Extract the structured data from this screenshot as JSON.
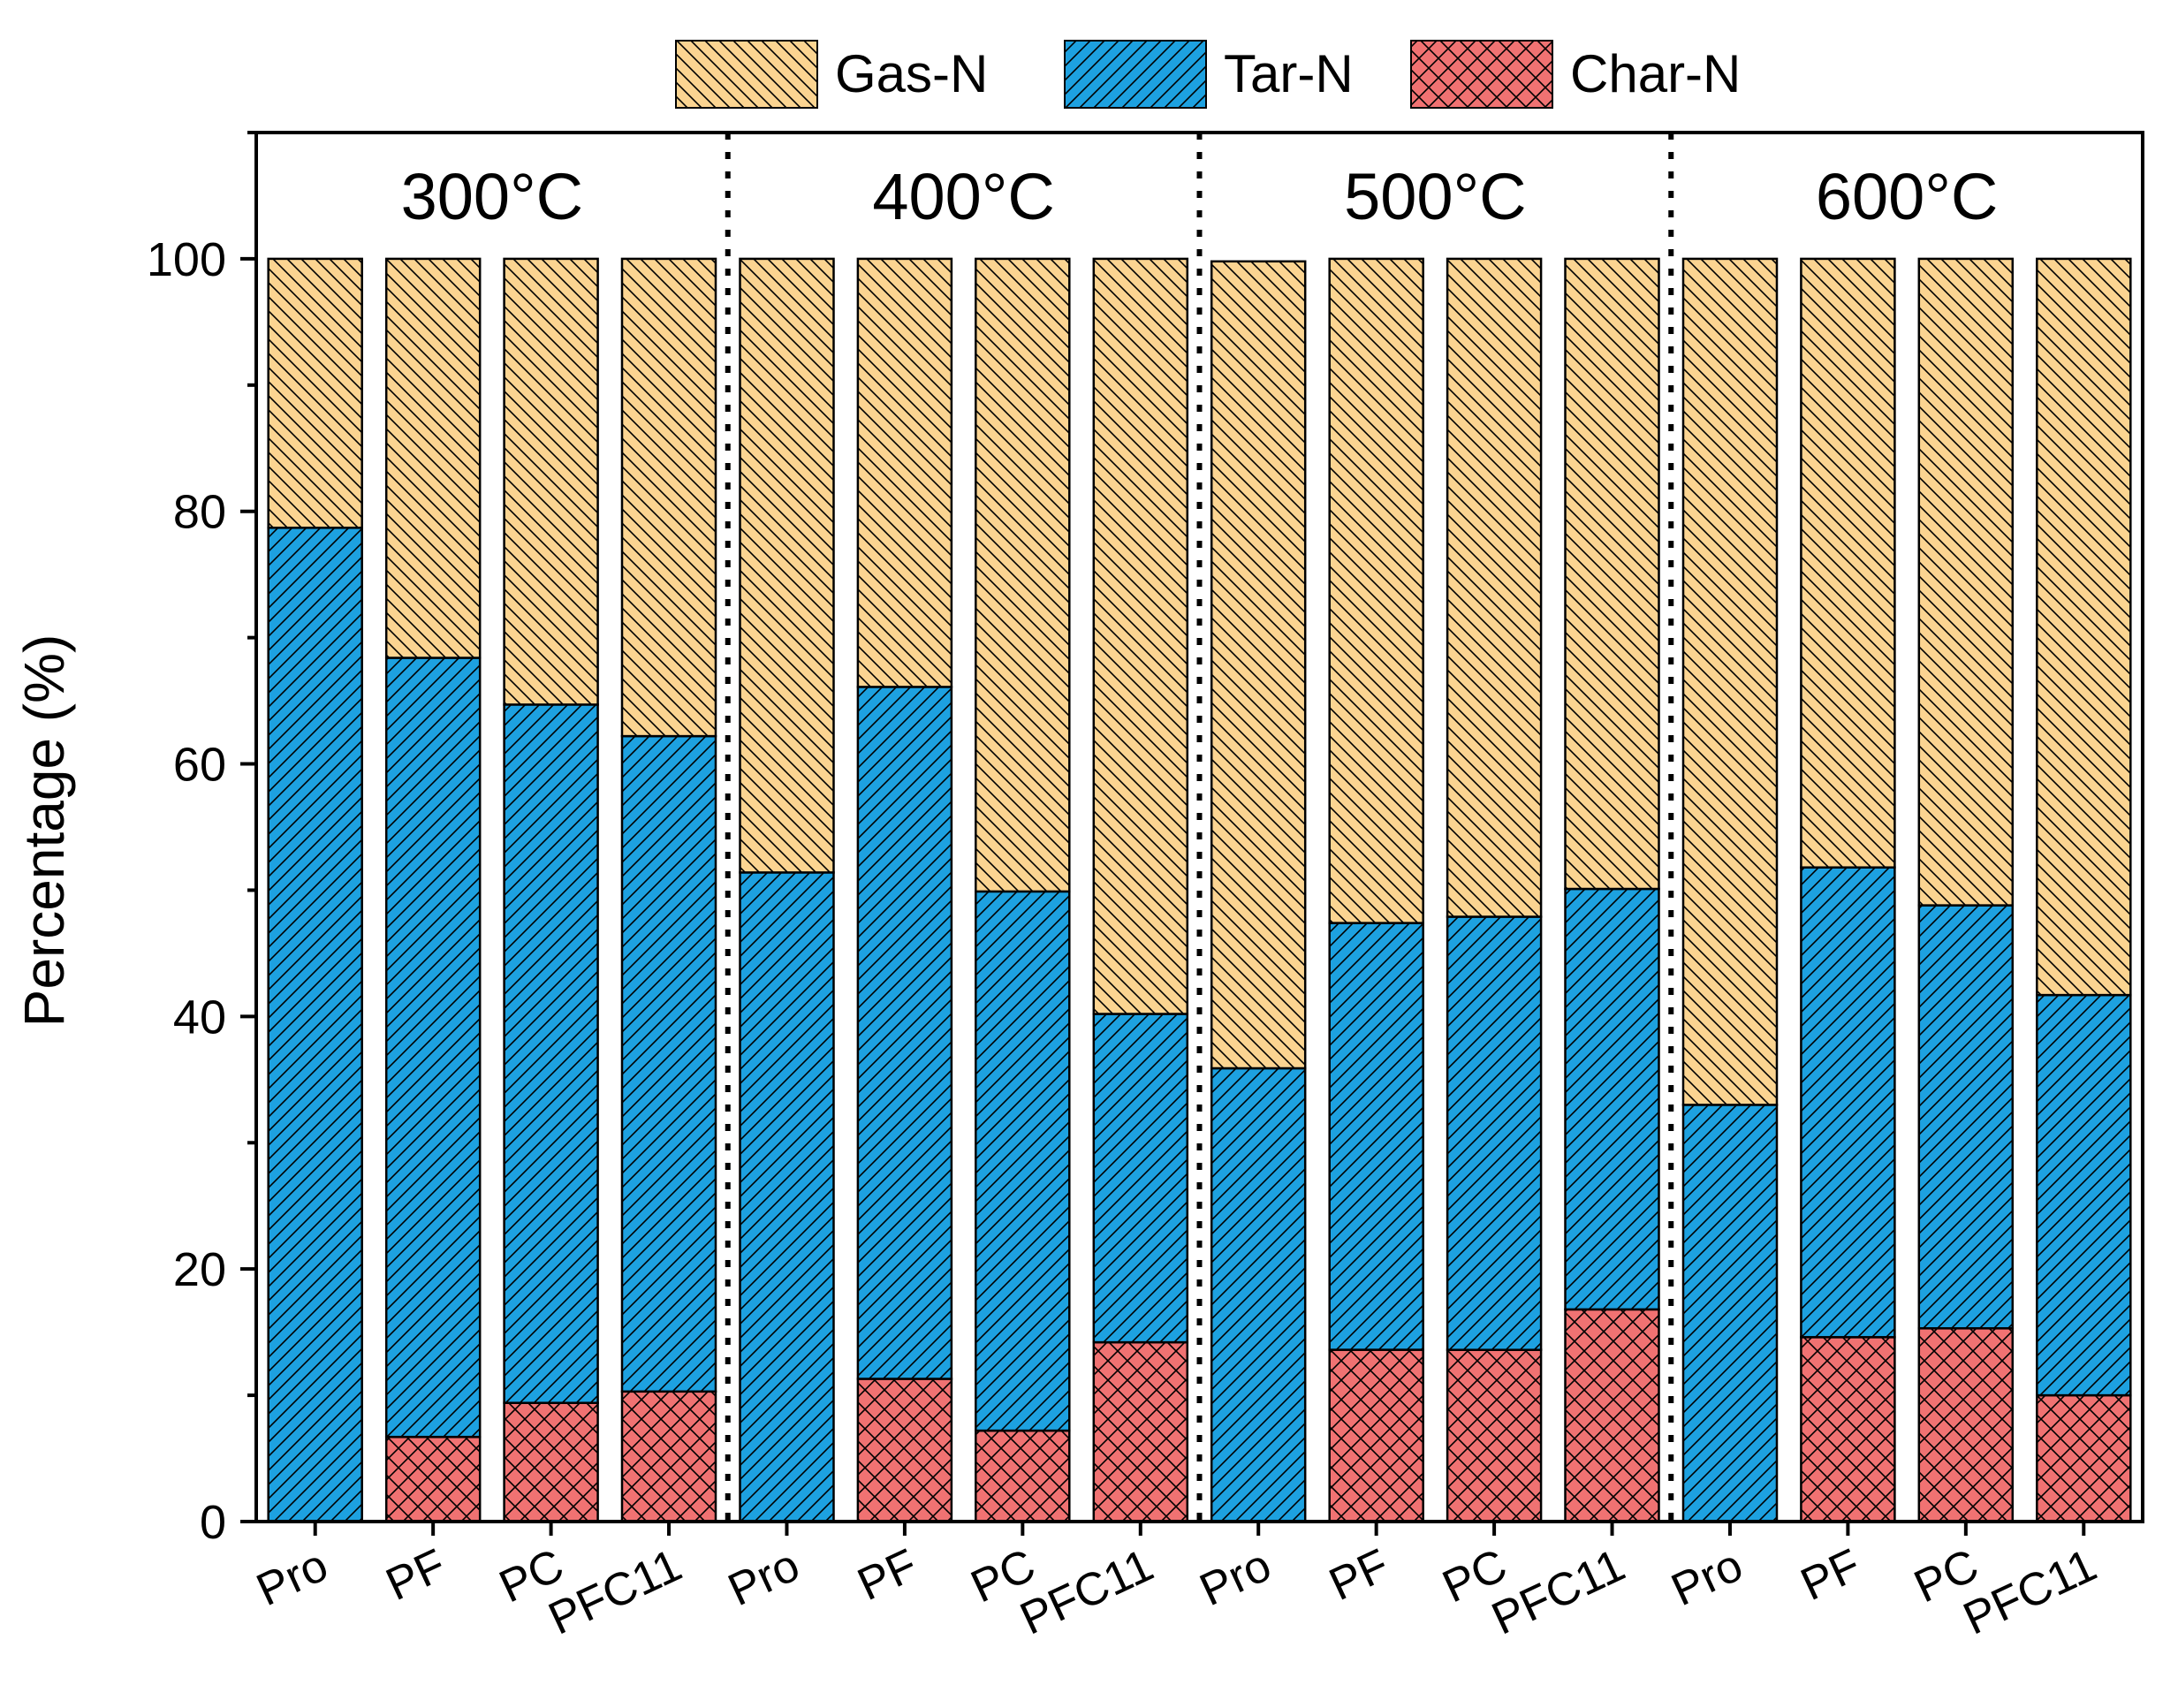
{
  "chart_data": {
    "type": "bar",
    "stacked": true,
    "title": "",
    "xlabel": "",
    "ylabel": "Percentage (%)",
    "ylim": [
      0,
      110
    ],
    "yticks": [
      0,
      20,
      40,
      60,
      80,
      100
    ],
    "groups": [
      "300°C",
      "400°C",
      "500°C",
      "600°C"
    ],
    "categories": [
      "Pro",
      "PF",
      "PC",
      "PFC11",
      "Pro",
      "PF",
      "PC",
      "PFC11",
      "Pro",
      "PF",
      "PC",
      "PFC11",
      "Pro",
      "PF",
      "PC",
      "PFC11"
    ],
    "series": [
      {
        "name": "Char-N",
        "color": "#F07272",
        "pattern": "crosshatch",
        "values": [
          0,
          6.7,
          9.4,
          10.3,
          0,
          11.3,
          7.2,
          14.2,
          0,
          13.6,
          13.6,
          16.8,
          0,
          14.6,
          15.3,
          10.0
        ]
      },
      {
        "name": "Tar-N",
        "color": "#1DA1E0",
        "pattern": "diagonal-forward",
        "values": [
          78.7,
          61.7,
          55.3,
          51.9,
          51.4,
          54.8,
          42.7,
          26.0,
          35.9,
          33.8,
          34.3,
          33.3,
          33.0,
          37.2,
          33.5,
          31.7
        ]
      },
      {
        "name": "Gas-N",
        "color": "#FBD491",
        "pattern": "diagonal-back",
        "values": [
          21.3,
          31.6,
          35.3,
          37.8,
          48.6,
          33.9,
          50.1,
          59.8,
          63.9,
          52.6,
          52.1,
          49.9,
          67.0,
          48.2,
          51.2,
          58.3
        ]
      }
    ],
    "legend": {
      "position": "top",
      "items": [
        "Gas-N",
        "Tar-N",
        "Char-N"
      ]
    }
  }
}
